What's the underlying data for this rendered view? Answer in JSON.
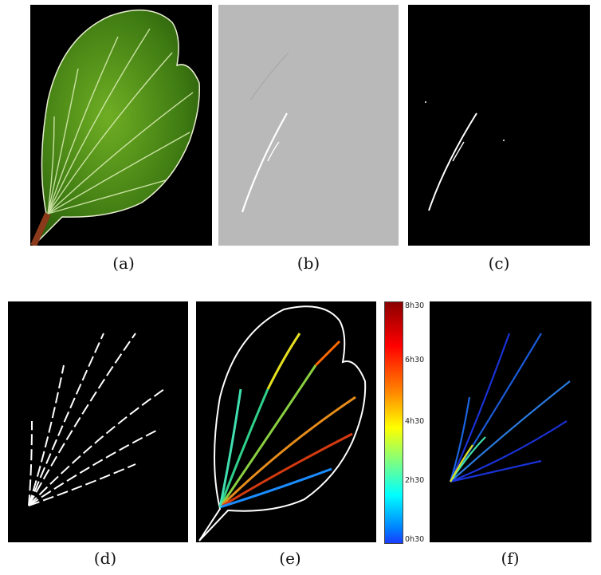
{
  "figure": {
    "captions": [
      "(a)",
      "(b)",
      "(c)",
      "(d)",
      "(e)",
      "(f)"
    ],
    "colorbar": {
      "labels": [
        "8h30",
        "6h30",
        "4h30",
        "2h30",
        "0h30"
      ],
      "colors": [
        "#8b0000",
        "#ff0000",
        "#ff8c00",
        "#ffff00",
        "#7fff7f",
        "#00ffff",
        "#0080ff",
        "#1a3cff"
      ]
    }
  }
}
